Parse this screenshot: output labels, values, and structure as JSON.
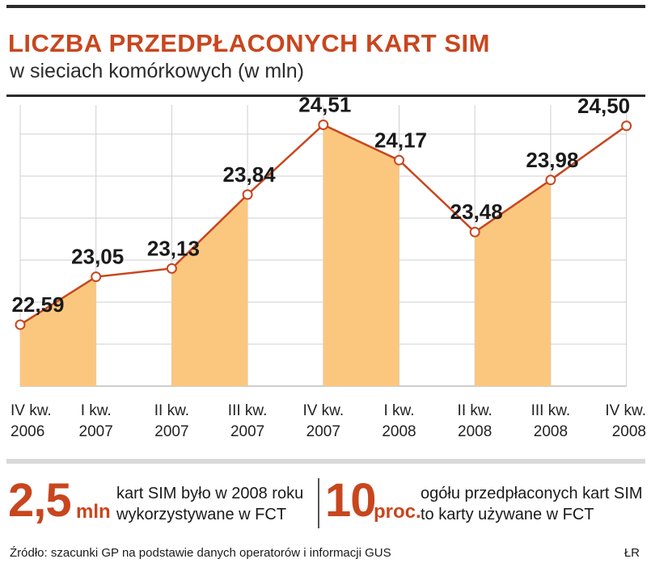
{
  "header": {
    "title": "LICZBA PRZEDPŁACONYCH KART SIM",
    "subtitle": "w sieciach komórkowych (w mln)"
  },
  "chart_data": {
    "type": "line",
    "title": "LICZBA PRZEDPŁACONYCH KART SIM",
    "subtitle": "w sieciach komórkowych (w mln)",
    "categories": [
      [
        "IV kw.",
        "2006"
      ],
      [
        "I kw.",
        "2007"
      ],
      [
        "II kw.",
        "2007"
      ],
      [
        "III kw.",
        "2007"
      ],
      [
        "IV kw.",
        "2007"
      ],
      [
        "I kw.",
        "2008"
      ],
      [
        "II kw.",
        "2008"
      ],
      [
        "III kw.",
        "2008"
      ],
      [
        "IV kw.",
        "2008"
      ]
    ],
    "values": [
      22.59,
      23.05,
      23.13,
      23.84,
      24.51,
      24.17,
      23.48,
      23.98,
      24.5
    ],
    "value_labels": [
      "22,59",
      "23,05",
      "23,13",
      "23,84",
      "24,51",
      "24,17",
      "23,48",
      "23,98",
      "24,50"
    ],
    "shaded_segments": [
      [
        0,
        1
      ],
      [
        2,
        3
      ],
      [
        4,
        5
      ],
      [
        6,
        7
      ]
    ],
    "ylim": [
      22.0,
      24.7
    ],
    "grid": true,
    "colors": {
      "line": "#c8461e",
      "fill": "#fbc77f",
      "marker_fill": "#ffffff",
      "grid": "#cfcfcf"
    }
  },
  "facts": [
    {
      "number": "2,5",
      "unit": "mln",
      "line1": "kart SIM było w 2008 roku",
      "line2": "wykorzystywane w FCT"
    },
    {
      "number": "10",
      "unit": "proc.",
      "line1": "ogółu przedpłaconych kart SIM",
      "line2": "to karty używane w FCT"
    }
  ],
  "footer": {
    "source": "Źródło: szacunki GP na podstawie danych operatorów i informacji GUS",
    "author": "ŁR"
  }
}
